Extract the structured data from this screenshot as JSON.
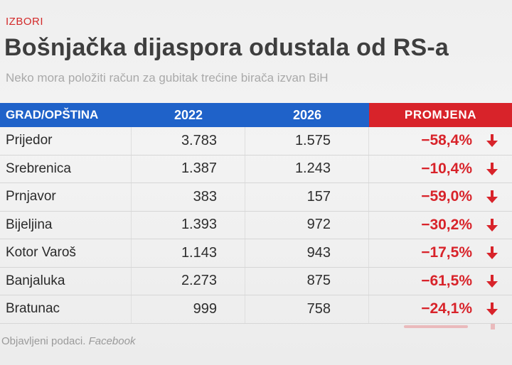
{
  "kicker": "IZBORI",
  "headline": "Bošnjačka dijaspora odustala od RS-a",
  "subhead": "Neko mora položiti račun za gubitak trećine birača izvan BiH",
  "table": {
    "headers": {
      "city": "GRAD/OPŠTINA",
      "year_a": "2022",
      "year_b": "2026",
      "change": "PROMJENA"
    },
    "rows": [
      {
        "city": "Prijedor",
        "v2022": "3.783",
        "v2026": "1.575",
        "change": "−58,4%"
      },
      {
        "city": "Srebrenica",
        "v2022": "1.387",
        "v2026": "1.243",
        "change": "−10,4%"
      },
      {
        "city": "Prnjavor",
        "v2022": "383",
        "v2026": "157",
        "change": "−59,0%"
      },
      {
        "city": "Bijeljina",
        "v2022": "1.393",
        "v2026": "972",
        "change": "−30,2%"
      },
      {
        "city": "Kotor Varoš",
        "v2022": "1.143",
        "v2026": "943",
        "change": "−17,5%"
      },
      {
        "city": "Banjaluka",
        "v2022": "2.273",
        "v2026": "875",
        "change": "−61,5%"
      },
      {
        "city": "Bratunac",
        "v2022": "999",
        "v2026": "758",
        "change": "−24,1%"
      }
    ],
    "arrow_icon": "arrow-down-icon",
    "accent_red": "#d8232a",
    "header_blue": "#1f62c9"
  },
  "source": {
    "label": "Objavljeni podaci.",
    "name": "Facebook"
  }
}
